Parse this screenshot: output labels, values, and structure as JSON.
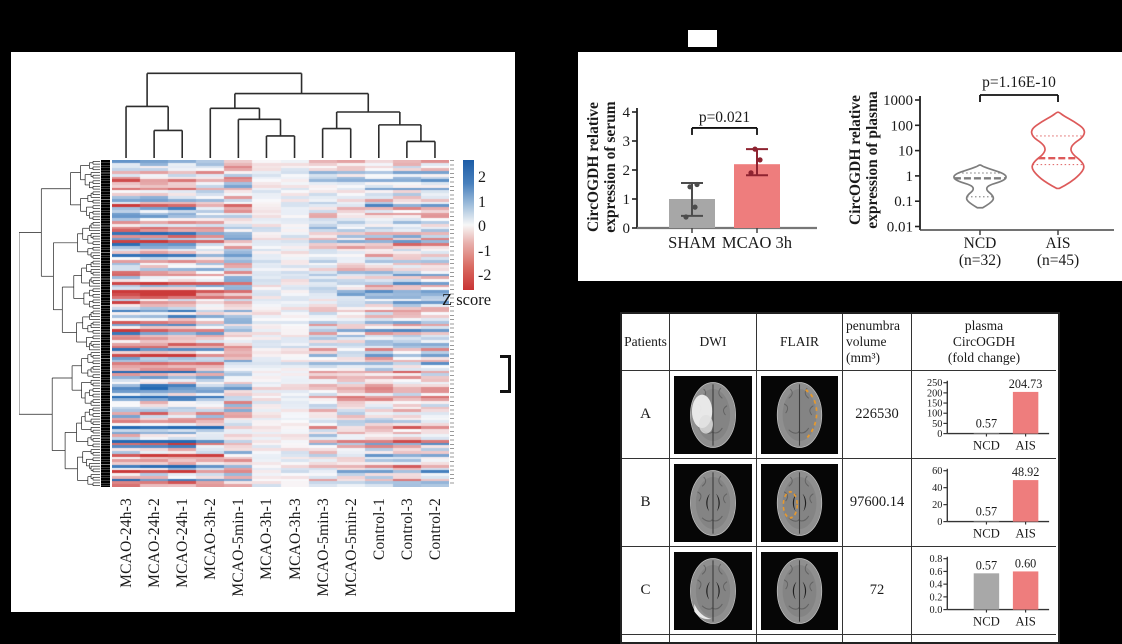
{
  "figure": {
    "background": "#000000",
    "panel_bg": "#ffffff"
  },
  "chart_data": [
    {
      "id": "expr_heatmap",
      "type": "heatmap",
      "title": "",
      "columns": [
        "MCAO-24h-3",
        "MCAO-24h-2",
        "MCAO-24h-1",
        "MCAO-3h-2",
        "MCAO-5min-1",
        "MCAO-3h-1",
        "MCAO-3h-3",
        "MCAO-5min-3",
        "MCAO-5min-2",
        "Control-1",
        "Control-3",
        "Control-2"
      ],
      "rows": 118,
      "seed": 7,
      "row_dendro_seed": 3,
      "col_group_factor": [
        -1,
        -1,
        -0.95,
        -0.6,
        -0.15,
        0.06,
        0.06,
        0.35,
        0.38,
        0.55,
        0.6,
        0.6
      ],
      "col_noise": [
        0.45,
        0.45,
        0.45,
        0.6,
        1.05,
        0.3,
        0.32,
        0.55,
        0.55,
        0.5,
        0.5,
        0.5
      ],
      "zlim": [
        -2.3,
        2.3
      ],
      "palette": {
        "high": "#2469b3",
        "mid": "#f9f9fb",
        "low": "#cb3a3a"
      },
      "colorbar": {
        "ticks": [
          "2",
          "1",
          "0",
          "-1",
          "-2"
        ],
        "label": "Z score"
      },
      "col_linkage": [
        {
          "id": "n23",
          "a": 1,
          "b": 2,
          "h": 0.7
        },
        {
          "id": "n123",
          "a": 0,
          "b": "n23",
          "h": 0.44
        },
        {
          "id": "n67",
          "a": 5,
          "b": 6,
          "h": 0.76
        },
        {
          "id": "n567",
          "a": 4,
          "b": "n67",
          "h": 0.58
        },
        {
          "id": "n4567",
          "a": 3,
          "b": "n567",
          "h": 0.46
        },
        {
          "id": "n89",
          "a": 7,
          "b": 8,
          "h": 0.68
        },
        {
          "id": "n1112",
          "a": 10,
          "b": 11,
          "h": 0.82
        },
        {
          "id": "n101112",
          "a": 9,
          "b": "n1112",
          "h": 0.64
        },
        {
          "id": "nB",
          "a": "n89",
          "b": "n101112",
          "h": 0.5
        },
        {
          "id": "nR",
          "a": "n4567",
          "b": "nB",
          "h": 0.3
        },
        {
          "id": "root",
          "a": "n123",
          "b": "nR",
          "h": 0.08
        }
      ]
    },
    {
      "id": "serum",
      "type": "bar",
      "ylabel_lines": [
        "CircOGDH relative",
        "expression of serum"
      ],
      "categories": [
        "SHAM",
        "MCAO 3h"
      ],
      "values": [
        1.0,
        2.2
      ],
      "errors": [
        [
          0.42,
          1.55
        ],
        [
          1.82,
          2.72
        ]
      ],
      "points": [
        [
          0.38,
          0.72,
          1.42,
          1.5
        ],
        [
          1.9,
          2.35,
          2.72
        ]
      ],
      "colors": [
        "#a7a7a7",
        "#ee7d7d"
      ],
      "point_colors": [
        "#4c4c4c",
        "#8e2330"
      ],
      "ylim": [
        0,
        4
      ],
      "yticks": [
        "0",
        "1",
        "2",
        "3",
        "4"
      ],
      "p_label": "p=0.021",
      "p_bracket_y": 3.45
    },
    {
      "id": "plasma_violin",
      "type": "violin",
      "scale": "log",
      "ylabel_lines": [
        "CircOGDH relative",
        "expression of plasma"
      ],
      "ylim": [
        0.01,
        1000
      ],
      "yticks": [
        "1000",
        "100",
        "10",
        "1",
        "0.1",
        "0.01"
      ],
      "p_label": "p=1.16E-10",
      "categories": [
        {
          "label": "NCD",
          "sub": "(n=32)",
          "color": "#7d7d7d",
          "median": 0.8,
          "q1": 0.15,
          "q3": 1.3,
          "profile": [
            [
              0.055,
              0.1
            ],
            [
              0.08,
              0.35
            ],
            [
              0.12,
              0.52
            ],
            [
              0.18,
              0.45
            ],
            [
              0.28,
              0.22
            ],
            [
              0.42,
              0.3
            ],
            [
              0.6,
              0.8
            ],
            [
              0.85,
              1.0
            ],
            [
              1.2,
              0.9
            ],
            [
              1.7,
              0.5
            ],
            [
              2.3,
              0.12
            ],
            [
              2.7,
              0.03
            ]
          ]
        },
        {
          "label": "AIS",
          "sub": "(n=45)",
          "color": "#dd5a5a",
          "median": 5,
          "q1": 2.8,
          "q3": 38,
          "profile": [
            [
              0.32,
              0.05
            ],
            [
              0.55,
              0.45
            ],
            [
              1.1,
              0.8
            ],
            [
              2.2,
              1.0
            ],
            [
              4,
              0.85
            ],
            [
              7,
              0.55
            ],
            [
              12,
              0.45
            ],
            [
              20,
              0.6
            ],
            [
              35,
              0.95
            ],
            [
              70,
              1.0
            ],
            [
              140,
              0.6
            ],
            [
              240,
              0.2
            ],
            [
              330,
              0.04
            ]
          ]
        }
      ]
    },
    {
      "id": "mini_a",
      "type": "bar",
      "categories": [
        "NCD",
        "AIS"
      ],
      "values": [
        0.57,
        204.73
      ],
      "value_labels": [
        "0.57",
        "204.73"
      ],
      "colors": [
        "#a8a8a8",
        "#ee7d7d"
      ],
      "ylim": [
        0,
        250
      ],
      "yticks": [
        "0",
        "50",
        "100",
        "150",
        "200",
        "250"
      ]
    },
    {
      "id": "mini_b",
      "type": "bar",
      "categories": [
        "NCD",
        "AIS"
      ],
      "values": [
        0.57,
        48.92
      ],
      "value_labels": [
        "0.57",
        "48.92"
      ],
      "colors": [
        "#a8a8a8",
        "#ee7d7d"
      ],
      "ylim": [
        0,
        60
      ],
      "yticks": [
        "0",
        "20",
        "40",
        "60"
      ]
    },
    {
      "id": "mini_c",
      "type": "bar",
      "categories": [
        "NCD",
        "AIS"
      ],
      "values": [
        0.57,
        0.6
      ],
      "value_labels": [
        "0.57",
        "0.60"
      ],
      "colors": [
        "#a8a8a8",
        "#ee7d7d"
      ],
      "ylim": [
        0,
        0.8
      ],
      "yticks": [
        "0.0",
        "0.2",
        "0.4",
        "0.6",
        "0.8"
      ]
    }
  ],
  "table": {
    "headers": [
      [
        "Patients"
      ],
      [
        "DWI"
      ],
      [
        "FLAIR"
      ],
      [
        "penumbra",
        "volume",
        "(mm³)"
      ],
      [
        "plasma",
        "CircOGDH",
        "(fold change)"
      ]
    ],
    "rows": [
      {
        "patient": "A",
        "volume": "226530",
        "chart": "mini_a",
        "dwi": {
          "bright": "left"
        },
        "flair": {
          "dashed": "right"
        }
      },
      {
        "patient": "B",
        "volume": "97600.14",
        "chart": "mini_b",
        "dwi": {
          "ventricles": true
        },
        "flair": {
          "ventricles": true,
          "dashed": "left"
        }
      },
      {
        "patient": "C",
        "volume": "72",
        "chart": "mini_c",
        "dwi": {
          "ventricles": true,
          "bright": "crescent"
        },
        "flair": {
          "ventricles": true
        }
      }
    ]
  }
}
